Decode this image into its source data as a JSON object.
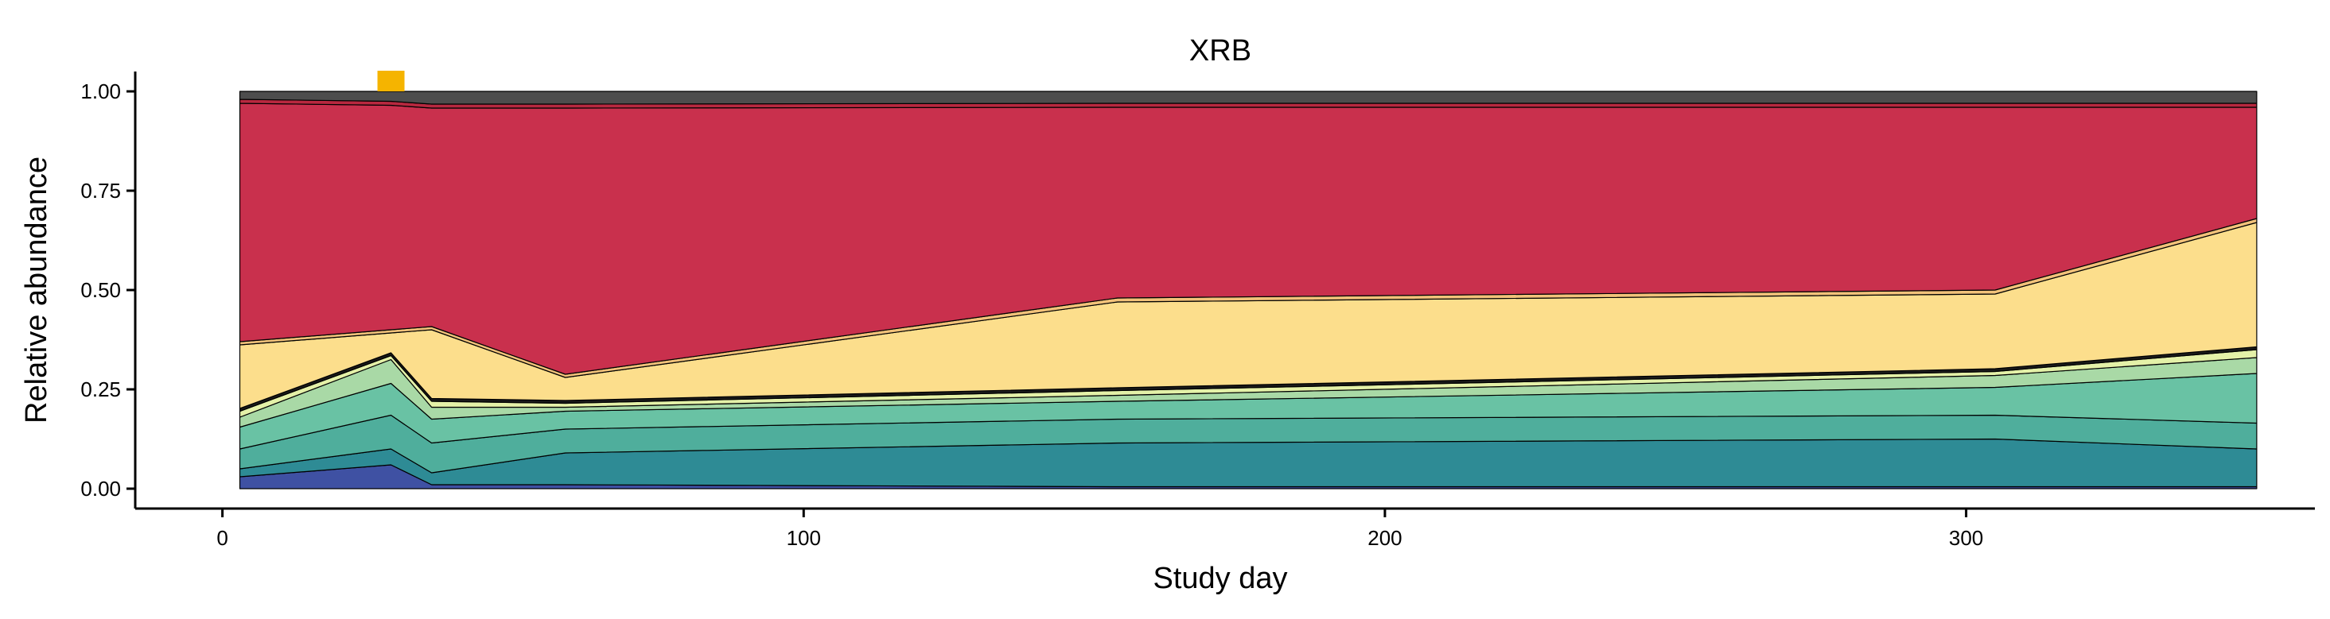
{
  "chart_data": {
    "type": "area",
    "title": "XRB",
    "xlabel": "Study day",
    "ylabel": "Relative abundance",
    "xlim": [
      -15,
      360
    ],
    "ylim": [
      -0.05,
      1.05
    ],
    "x_ticks": [
      0,
      100,
      200,
      300
    ],
    "x_tick_labels": [
      "0",
      "100",
      "200",
      "300"
    ],
    "y_ticks": [
      0,
      0.25,
      0.5,
      0.75,
      1.0
    ],
    "y_tick_labels": [
      "0.00",
      "0.25",
      "0.50",
      "0.75",
      "1.00"
    ],
    "grid": false,
    "legend": "none",
    "stacked": true,
    "x": [
      3,
      29,
      36,
      59,
      154,
      305,
      350
    ],
    "series": [
      {
        "color": "#3F51A3",
        "values": [
          0.03,
          0.06,
          0.01,
          0.01,
          0.005,
          0.005,
          0.005
        ]
      },
      {
        "color": "#2E8B95",
        "values": [
          0.02,
          0.04,
          0.03,
          0.08,
          0.11,
          0.12,
          0.095
        ]
      },
      {
        "color": "#4FAE9C",
        "values": [
          0.05,
          0.085,
          0.075,
          0.06,
          0.06,
          0.06,
          0.065
        ]
      },
      {
        "color": "#69C2A4",
        "values": [
          0.055,
          0.08,
          0.06,
          0.045,
          0.045,
          0.07,
          0.125
        ]
      },
      {
        "color": "#A9D9A6",
        "values": [
          0.025,
          0.06,
          0.03,
          0.01,
          0.015,
          0.03,
          0.04
        ]
      },
      {
        "color": "#E4F1A8",
        "values": [
          0.015,
          0.01,
          0.015,
          0.01,
          0.012,
          0.01,
          0.02
        ]
      },
      {
        "color": "#1A1A1A",
        "values": [
          0.007,
          0.007,
          0.007,
          0.007,
          0.007,
          0.007,
          0.007
        ]
      },
      {
        "color": "#FCDE8C",
        "values": [
          0.16,
          0.05,
          0.173,
          0.058,
          0.216,
          0.188,
          0.313
        ]
      },
      {
        "color": "#F2C27A",
        "values": [
          0.008,
          0.008,
          0.008,
          0.008,
          0.01,
          0.01,
          0.01
        ]
      },
      {
        "color": "#C9304D",
        "values": [
          0.6,
          0.565,
          0.55,
          0.67,
          0.48,
          0.46,
          0.28
        ]
      },
      {
        "color": "#B8283F",
        "values": [
          0.01,
          0.01,
          0.01,
          0.01,
          0.01,
          0.01,
          0.01
        ]
      },
      {
        "color": "#4D4D4D",
        "values": [
          0.02,
          0.025,
          0.032,
          0.032,
          0.03,
          0.03,
          0.03
        ]
      }
    ],
    "annotations": [
      {
        "type": "marker",
        "x": 29,
        "color": "#F5B400"
      }
    ]
  }
}
